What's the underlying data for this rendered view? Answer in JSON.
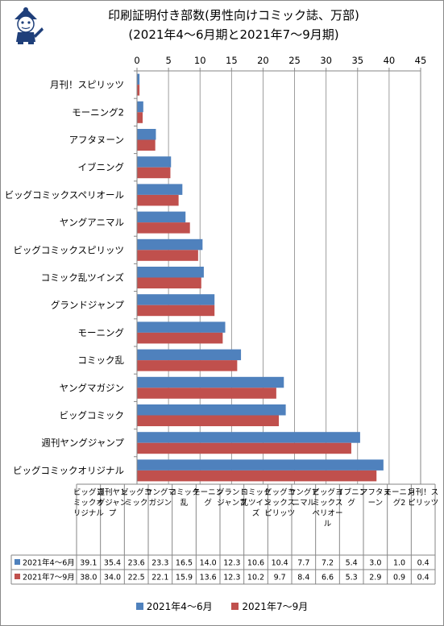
{
  "chart_data": {
    "type": "bar",
    "orientation": "horizontal",
    "title": "印刷証明付き部数(男性向けコミック誌、万部)",
    "subtitle": "(2021年4～6月期と2021年7～9月期)",
    "categories": [
      "ビッグコミックオリジナル",
      "週刊ヤングジャンプ",
      "ビッグコミック",
      "ヤングマガジン",
      "コミック乱",
      "モーニング",
      "グランドジャンプ",
      "コミック乱ツインズ",
      "ビッグコミックスピリッツ",
      "ヤングアニマル",
      "ビッグコミックスペリオール",
      "イブニング",
      "アフタヌーン",
      "モーニング2",
      "月刊！スピリッツ"
    ],
    "table_headers": [
      "ビッグコミックオリジナル",
      "週刊ヤングジャンプ",
      "ビッグコミック",
      "ヤングマガジン",
      "コミック乱",
      "モーニング",
      "グランドジャンプ",
      "コミック乱ツインズ",
      "ビッグコミックスピリッツ",
      "ヤングアニマル",
      "ビッグコミックスペリオール",
      "イブニング",
      "アフタヌーン",
      "モーニング2",
      "月刊！スピリッツ"
    ],
    "series": [
      {
        "name": "2021年4～6月",
        "color": "#4f81bd",
        "values": [
          39.1,
          35.4,
          23.6,
          23.3,
          16.5,
          14.0,
          12.3,
          10.6,
          10.4,
          7.7,
          7.2,
          5.4,
          3.0,
          1.0,
          0.4
        ],
        "labels": [
          "39.1",
          "35.4",
          "23.6",
          "23.3",
          "16.5",
          "14.0",
          "12.3",
          "10.6",
          "10.4",
          "7.7",
          "7.2",
          "5.4",
          "3.0",
          "1.0",
          "0.4"
        ]
      },
      {
        "name": "2021年7～9月",
        "color": "#c0504d",
        "values": [
          38.0,
          34.0,
          22.5,
          22.1,
          15.9,
          13.6,
          12.3,
          10.2,
          9.7,
          8.4,
          6.6,
          5.3,
          2.9,
          0.9,
          0.4
        ],
        "labels": [
          "38.0",
          "34.0",
          "22.5",
          "22.1",
          "15.9",
          "13.6",
          "12.3",
          "10.2",
          "9.7",
          "8.4",
          "6.6",
          "5.3",
          "2.9",
          "0.9",
          "0.4"
        ]
      }
    ],
    "xlim": [
      0,
      45
    ],
    "ticks": [
      0,
      5,
      10,
      15,
      20,
      25,
      30,
      35,
      40,
      45
    ],
    "tick_labels": [
      "0",
      "5",
      "10",
      "15",
      "20",
      "25",
      "30",
      "35",
      "40",
      "45"
    ],
    "xlabel": "",
    "ylabel": "",
    "grid": true,
    "legend_position": "bottom",
    "data_table": true
  }
}
